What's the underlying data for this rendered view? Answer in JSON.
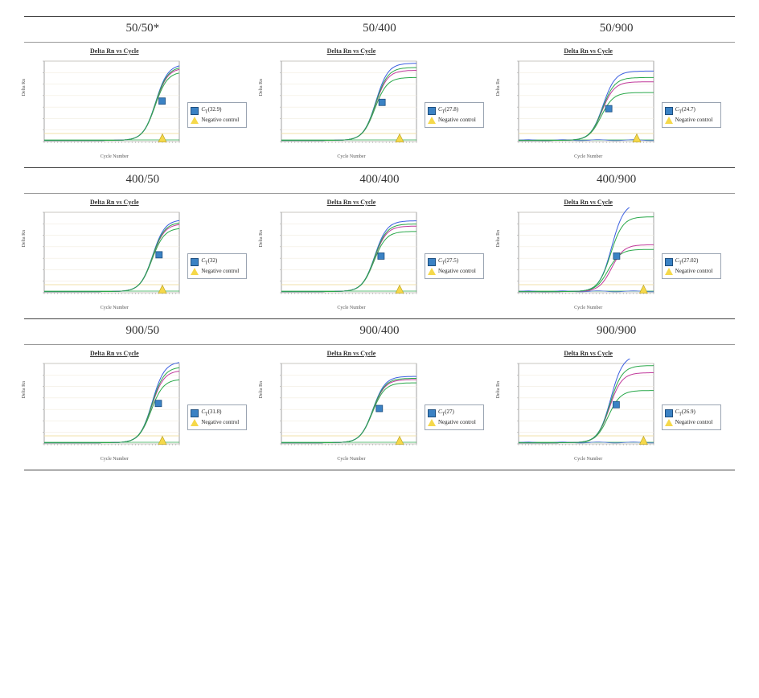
{
  "chart_common": {
    "plot_title": "Delta Rn vs Cycle",
    "xlabel": "Cycle Number",
    "ylabel": "Delta Rn",
    "xlim": [
      0,
      40
    ],
    "ylim": [
      0,
      3.5
    ],
    "xtick_step": 5,
    "ytick_step": 0.5,
    "grid_color": "#f2ecdf",
    "axis_color": "#666666",
    "bg": "#ffffff",
    "threshold_color": "#f2e0a8",
    "threshold_y": 0.35,
    "neg_marker_color": "#f5d84a",
    "ct_marker_color": "#3b82c4",
    "curve_colors": [
      "#2aa84a",
      "#c13a9c",
      "#3b5fe0",
      "#2aa84a"
    ],
    "negctrl_color": "#2aa84a",
    "marker_size": 8,
    "line_width": 1,
    "title_fontsize": 8,
    "label_fontsize": 6,
    "legend_neg": "Negative control",
    "legend_ct_prefix": "C",
    "legend_ct_sub": "T"
  },
  "rows": [
    {
      "labels": [
        "50/50*",
        "50/400",
        "50/900"
      ],
      "charts": [
        {
          "ct": 32.9,
          "ct_display": "32.9",
          "plateau": 3.2,
          "spread": 0.05,
          "neg_x": 35,
          "extra_neg_trace": false
        },
        {
          "ct": 27.8,
          "ct_display": "27.8",
          "plateau": 3.1,
          "spread": 0.1,
          "neg_x": 35,
          "extra_neg_trace": false
        },
        {
          "ct": 24.7,
          "ct_display": "24.7",
          "plateau": 2.6,
          "spread": 0.18,
          "neg_x": 35,
          "extra_neg_trace": true
        }
      ]
    },
    {
      "labels": [
        "400/50",
        "400/400",
        "400/900"
      ],
      "charts": [
        {
          "ct": 32.0,
          "ct_display": "32",
          "plateau": 3.0,
          "spread": 0.06,
          "neg_x": 35,
          "extra_neg_trace": false
        },
        {
          "ct": 27.5,
          "ct_display": "27.5",
          "plateau": 2.9,
          "spread": 0.08,
          "neg_x": 35,
          "extra_neg_trace": false
        },
        {
          "ct": 27.02,
          "ct_display": "27.02",
          "plateau": 2.9,
          "spread": 0.35,
          "neg_x": 37,
          "extra_neg_trace": true,
          "purple_low": true
        }
      ]
    },
    {
      "labels": [
        "900/50",
        "900/400",
        "900/900"
      ],
      "charts": [
        {
          "ct": 31.8,
          "ct_display": "31.8",
          "plateau": 3.2,
          "spread": 0.12,
          "neg_x": 35,
          "extra_neg_trace": false
        },
        {
          "ct": 27.0,
          "ct_display": "27",
          "plateau": 2.8,
          "spread": 0.05,
          "neg_x": 35,
          "extra_neg_trace": false
        },
        {
          "ct": 26.9,
          "ct_display": "26.9",
          "plateau": 3.1,
          "spread": 0.25,
          "neg_x": 37,
          "extra_neg_trace": true
        }
      ]
    }
  ]
}
